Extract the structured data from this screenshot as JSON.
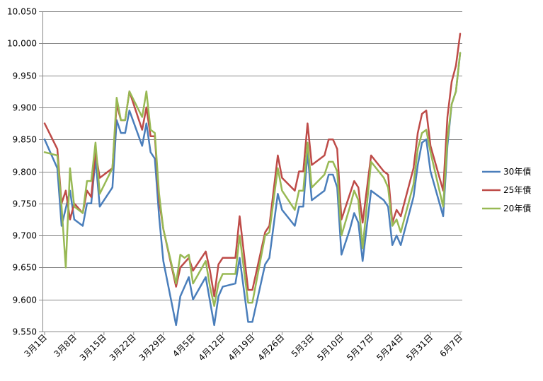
{
  "chart_data": {
    "type": "line",
    "title": "",
    "xlabel": "",
    "ylabel": "",
    "ylim": [
      9.55,
      10.05
    ],
    "ytick_step": 0.05,
    "grid": "horizontal",
    "legend_position": "right",
    "x_ticks": [
      "3月1日",
      "3月8日",
      "3月15日",
      "3月22日",
      "3月29日",
      "4月5日",
      "4月12日",
      "4月19日",
      "4月26日",
      "5月3日",
      "5月10日",
      "5月17日",
      "5月24日",
      "5月31日",
      "6月7日"
    ],
    "x_count": 99,
    "x_tick_indices": [
      0,
      7,
      14,
      21,
      28,
      35,
      42,
      49,
      56,
      63,
      70,
      77,
      84,
      91,
      98
    ],
    "series": [
      {
        "name": "30年債",
        "color": "#4a7ebb",
        "points": [
          [
            0,
            9.85
          ],
          [
            3,
            9.805
          ],
          [
            4,
            9.715
          ],
          [
            6,
            9.77
          ],
          [
            7,
            9.725
          ],
          [
            9,
            9.715
          ],
          [
            10,
            9.75
          ],
          [
            11,
            9.75
          ],
          [
            12,
            9.82
          ],
          [
            13,
            9.745
          ],
          [
            16,
            9.775
          ],
          [
            17,
            9.88
          ],
          [
            18,
            9.86
          ],
          [
            19,
            9.86
          ],
          [
            20,
            9.895
          ],
          [
            23,
            9.84
          ],
          [
            24,
            9.875
          ],
          [
            25,
            9.83
          ],
          [
            26,
            9.82
          ],
          [
            27,
            9.73
          ],
          [
            28,
            9.66
          ],
          [
            31,
            9.56
          ],
          [
            32,
            9.605
          ],
          [
            34,
            9.635
          ],
          [
            35,
            9.6
          ],
          [
            38,
            9.635
          ],
          [
            40,
            9.56
          ],
          [
            41,
            9.605
          ],
          [
            42,
            9.62
          ],
          [
            45,
            9.625
          ],
          [
            46,
            9.665
          ],
          [
            48,
            9.565
          ],
          [
            49,
            9.565
          ],
          [
            52,
            9.655
          ],
          [
            53,
            9.665
          ],
          [
            55,
            9.765
          ],
          [
            56,
            9.74
          ],
          [
            59,
            9.715
          ],
          [
            60,
            9.745
          ],
          [
            61,
            9.745
          ],
          [
            62,
            9.83
          ],
          [
            63,
            9.755
          ],
          [
            66,
            9.77
          ],
          [
            67,
            9.795
          ],
          [
            68,
            9.795
          ],
          [
            69,
            9.775
          ],
          [
            70,
            9.67
          ],
          [
            72,
            9.71
          ],
          [
            73,
            9.735
          ],
          [
            74,
            9.72
          ],
          [
            75,
            9.66
          ],
          [
            77,
            9.77
          ],
          [
            80,
            9.755
          ],
          [
            81,
            9.745
          ],
          [
            82,
            9.685
          ],
          [
            83,
            9.7
          ],
          [
            84,
            9.685
          ],
          [
            87,
            9.76
          ],
          [
            88,
            9.81
          ],
          [
            89,
            9.845
          ],
          [
            90,
            9.85
          ],
          [
            91,
            9.8
          ],
          [
            94,
            9.73
          ],
          [
            95,
            9.84
          ],
          [
            96,
            9.905
          ],
          [
            97,
            9.925
          ],
          [
            98,
            9.985
          ]
        ]
      },
      {
        "name": "25年債",
        "color": "#be4b48",
        "points": [
          [
            0,
            9.875
          ],
          [
            3,
            9.835
          ],
          [
            4,
            9.75
          ],
          [
            5,
            9.77
          ],
          [
            6,
            9.725
          ],
          [
            7,
            9.75
          ],
          [
            9,
            9.735
          ],
          [
            10,
            9.77
          ],
          [
            11,
            9.76
          ],
          [
            12,
            9.83
          ],
          [
            13,
            9.79
          ],
          [
            16,
            9.805
          ],
          [
            17,
            9.905
          ],
          [
            18,
            9.88
          ],
          [
            19,
            9.88
          ],
          [
            20,
            9.925
          ],
          [
            23,
            9.865
          ],
          [
            24,
            9.9
          ],
          [
            25,
            9.855
          ],
          [
            26,
            9.855
          ],
          [
            27,
            9.755
          ],
          [
            28,
            9.71
          ],
          [
            31,
            9.62
          ],
          [
            32,
            9.65
          ],
          [
            34,
            9.665
          ],
          [
            35,
            9.645
          ],
          [
            38,
            9.675
          ],
          [
            39,
            9.645
          ],
          [
            40,
            9.605
          ],
          [
            41,
            9.655
          ],
          [
            42,
            9.665
          ],
          [
            45,
            9.665
          ],
          [
            46,
            9.73
          ],
          [
            48,
            9.615
          ],
          [
            49,
            9.615
          ],
          [
            52,
            9.705
          ],
          [
            53,
            9.715
          ],
          [
            55,
            9.825
          ],
          [
            56,
            9.79
          ],
          [
            59,
            9.77
          ],
          [
            60,
            9.8
          ],
          [
            61,
            9.8
          ],
          [
            62,
            9.875
          ],
          [
            63,
            9.81
          ],
          [
            66,
            9.825
          ],
          [
            67,
            9.85
          ],
          [
            68,
            9.85
          ],
          [
            69,
            9.835
          ],
          [
            70,
            9.725
          ],
          [
            72,
            9.765
          ],
          [
            73,
            9.785
          ],
          [
            74,
            9.775
          ],
          [
            75,
            9.72
          ],
          [
            77,
            9.825
          ],
          [
            80,
            9.8
          ],
          [
            81,
            9.795
          ],
          [
            82,
            9.72
          ],
          [
            83,
            9.74
          ],
          [
            84,
            9.73
          ],
          [
            87,
            9.805
          ],
          [
            88,
            9.86
          ],
          [
            89,
            9.89
          ],
          [
            90,
            9.895
          ],
          [
            91,
            9.84
          ],
          [
            94,
            9.77
          ],
          [
            95,
            9.885
          ],
          [
            96,
            9.94
          ],
          [
            97,
            9.965
          ],
          [
            98,
            10.015
          ]
        ]
      },
      {
        "name": "20年債",
        "color": "#98b954",
        "points": [
          [
            0,
            9.83
          ],
          [
            3,
            9.825
          ],
          [
            4,
            9.745
          ],
          [
            5,
            9.65
          ],
          [
            6,
            9.805
          ],
          [
            7,
            9.745
          ],
          [
            9,
            9.735
          ],
          [
            10,
            9.785
          ],
          [
            11,
            9.785
          ],
          [
            12,
            9.845
          ],
          [
            13,
            9.765
          ],
          [
            16,
            9.805
          ],
          [
            17,
            9.915
          ],
          [
            18,
            9.88
          ],
          [
            19,
            9.88
          ],
          [
            20,
            9.925
          ],
          [
            23,
            9.885
          ],
          [
            24,
            9.925
          ],
          [
            25,
            9.865
          ],
          [
            26,
            9.86
          ],
          [
            27,
            9.765
          ],
          [
            28,
            9.71
          ],
          [
            31,
            9.625
          ],
          [
            32,
            9.67
          ],
          [
            33,
            9.665
          ],
          [
            34,
            9.67
          ],
          [
            35,
            9.625
          ],
          [
            38,
            9.66
          ],
          [
            39,
            9.62
          ],
          [
            40,
            9.59
          ],
          [
            41,
            9.625
          ],
          [
            42,
            9.64
          ],
          [
            45,
            9.64
          ],
          [
            46,
            9.7
          ],
          [
            48,
            9.595
          ],
          [
            49,
            9.595
          ],
          [
            52,
            9.7
          ],
          [
            53,
            9.705
          ],
          [
            55,
            9.805
          ],
          [
            56,
            9.77
          ],
          [
            59,
            9.74
          ],
          [
            60,
            9.77
          ],
          [
            61,
            9.77
          ],
          [
            62,
            9.845
          ],
          [
            63,
            9.775
          ],
          [
            66,
            9.795
          ],
          [
            67,
            9.815
          ],
          [
            68,
            9.815
          ],
          [
            69,
            9.8
          ],
          [
            70,
            9.7
          ],
          [
            72,
            9.745
          ],
          [
            73,
            9.77
          ],
          [
            74,
            9.755
          ],
          [
            75,
            9.68
          ],
          [
            77,
            9.815
          ],
          [
            80,
            9.79
          ],
          [
            81,
            9.775
          ],
          [
            82,
            9.715
          ],
          [
            83,
            9.725
          ],
          [
            84,
            9.705
          ],
          [
            87,
            9.78
          ],
          [
            88,
            9.835
          ],
          [
            89,
            9.86
          ],
          [
            90,
            9.865
          ],
          [
            91,
            9.83
          ],
          [
            94,
            9.745
          ],
          [
            95,
            9.85
          ],
          [
            96,
            9.905
          ],
          [
            97,
            9.925
          ],
          [
            98,
            9.985
          ]
        ]
      }
    ]
  }
}
